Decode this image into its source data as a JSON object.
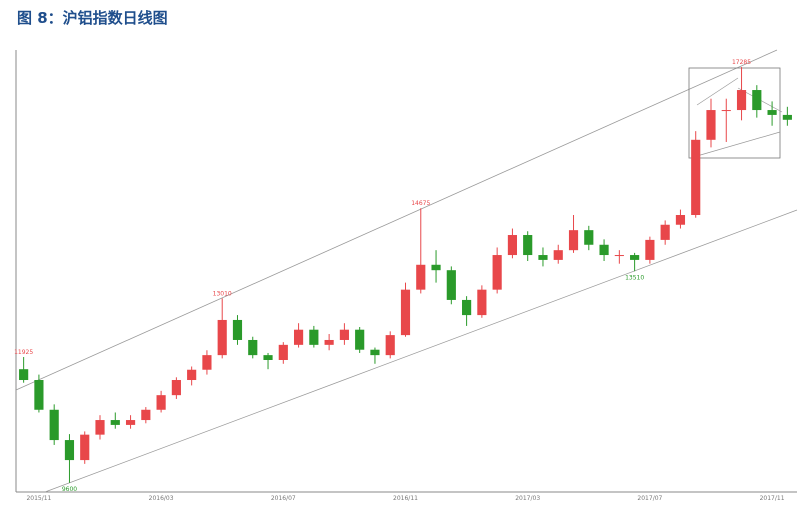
{
  "chart_data": {
    "type": "candlestick",
    "title": "图 8：沪铝指数日线图",
    "categories": [
      null,
      "2015/11",
      null,
      null,
      null,
      null,
      null,
      null,
      null,
      "2016/03",
      null,
      null,
      null,
      null,
      null,
      null,
      null,
      "2016/07",
      null,
      null,
      null,
      null,
      null,
      null,
      null,
      "2016/11",
      null,
      null,
      null,
      null,
      null,
      null,
      null,
      "2017/03",
      null,
      null,
      null,
      null,
      null,
      null,
      null,
      "2017/07",
      null,
      null,
      null,
      null,
      null,
      null,
      null,
      "2017/11",
      null
    ],
    "candles": [
      [
        11700,
        11925,
        11450,
        11500
      ],
      [
        11500,
        11600,
        10900,
        10950
      ],
      [
        10950,
        11050,
        10300,
        10390
      ],
      [
        10390,
        10500,
        9600,
        10020
      ],
      [
        10020,
        10550,
        9950,
        10490
      ],
      [
        10490,
        10850,
        10400,
        10760
      ],
      [
        10760,
        10900,
        10600,
        10670
      ],
      [
        10670,
        10850,
        10600,
        10760
      ],
      [
        10760,
        11000,
        10700,
        10950
      ],
      [
        10950,
        11300,
        10900,
        11220
      ],
      [
        11220,
        11550,
        11150,
        11500
      ],
      [
        11500,
        11750,
        11400,
        11690
      ],
      [
        11690,
        12050,
        11600,
        11960
      ],
      [
        11960,
        13010,
        11900,
        12610
      ],
      [
        12610,
        12700,
        12150,
        12240
      ],
      [
        12240,
        12300,
        11900,
        11960
      ],
      [
        11960,
        12000,
        11700,
        11870
      ],
      [
        11870,
        12200,
        11800,
        12150
      ],
      [
        12150,
        12550,
        12100,
        12430
      ],
      [
        12430,
        12500,
        12100,
        12150
      ],
      [
        12150,
        12350,
        12050,
        12240
      ],
      [
        12240,
        12550,
        12150,
        12430
      ],
      [
        12430,
        12480,
        12000,
        12060
      ],
      [
        12060,
        12100,
        11800,
        11960
      ],
      [
        11960,
        12400,
        11900,
        12330
      ],
      [
        12330,
        13300,
        12300,
        13170
      ],
      [
        13170,
        14675,
        13100,
        13630
      ],
      [
        13630,
        13900,
        13300,
        13530
      ],
      [
        13530,
        13600,
        12900,
        12980
      ],
      [
        12980,
        13050,
        12500,
        12700
      ],
      [
        12700,
        13250,
        12650,
        13170
      ],
      [
        13170,
        13950,
        13100,
        13810
      ],
      [
        13810,
        14300,
        13750,
        14180
      ],
      [
        14180,
        14250,
        13700,
        13810
      ],
      [
        13810,
        13950,
        13600,
        13720
      ],
      [
        13720,
        14000,
        13650,
        13900
      ],
      [
        13900,
        14550,
        13850,
        14270
      ],
      [
        14270,
        14350,
        13900,
        14000
      ],
      [
        14000,
        14100,
        13700,
        13810
      ],
      [
        13810,
        13900,
        13650,
        13810
      ],
      [
        13810,
        13850,
        13510,
        13720
      ],
      [
        13720,
        14150,
        13650,
        14090
      ],
      [
        14090,
        14450,
        14000,
        14370
      ],
      [
        14370,
        14650,
        14300,
        14550
      ],
      [
        14550,
        16100,
        14500,
        15940
      ],
      [
        15940,
        16700,
        15800,
        16490
      ],
      [
        16490,
        16700,
        15900,
        16490
      ],
      [
        16490,
        17285,
        16300,
        16860
      ],
      [
        16860,
        16950,
        16350,
        16490
      ],
      [
        16490,
        16650,
        16200,
        16400
      ],
      [
        16400,
        16550,
        16200,
        16310
      ]
    ],
    "annotations": [
      11925,
      9600,
      13010,
      14675,
      13510,
      17285
    ],
    "up_color": "#e8474a",
    "down_color": "#2a9a2a",
    "ylim": [
      9430,
      17600
    ]
  }
}
